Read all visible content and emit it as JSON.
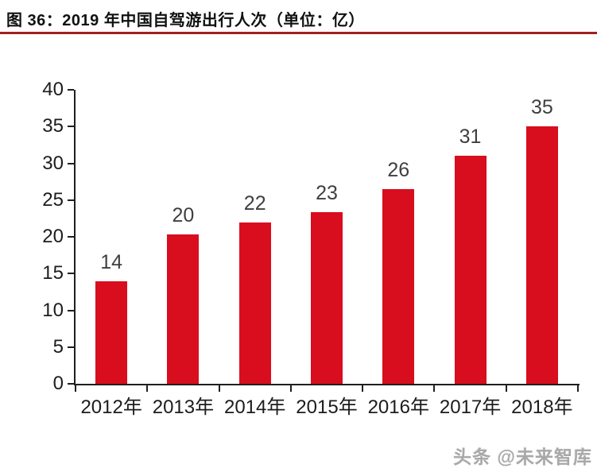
{
  "header": {
    "figure_title": "图 36：2019 年中国自驾游出行人次（单位：亿）",
    "underline_color": "#A2201F"
  },
  "chart_data": {
    "type": "bar",
    "title": "图 36：2019 年中国自驾游出行人次（单位：亿）",
    "categories": [
      "2012年",
      "2013年",
      "2014年",
      "2015年",
      "2016年",
      "2017年",
      "2018年"
    ],
    "values": [
      14,
      20,
      22,
      23,
      26,
      31,
      35
    ],
    "rendered_values": [
      14,
      20.3,
      22,
      23.4,
      26.5,
      31,
      35
    ],
    "data_labels": [
      "14",
      "20",
      "22",
      "23",
      "26",
      "31",
      "35"
    ],
    "unit": "亿",
    "xlabel": "",
    "ylabel": "",
    "ylim": [
      0,
      40
    ],
    "yticks": [
      0,
      5,
      10,
      15,
      20,
      25,
      30,
      35,
      40
    ],
    "grid": false,
    "legend_position": "none",
    "bar_color": "#D80D1D",
    "axis_color": "#1f1f1f",
    "tick_label_color": "#1c1c1c",
    "data_label_color": "#3f3f3f"
  },
  "footer": {
    "watermark": "头条 @未来智库"
  }
}
